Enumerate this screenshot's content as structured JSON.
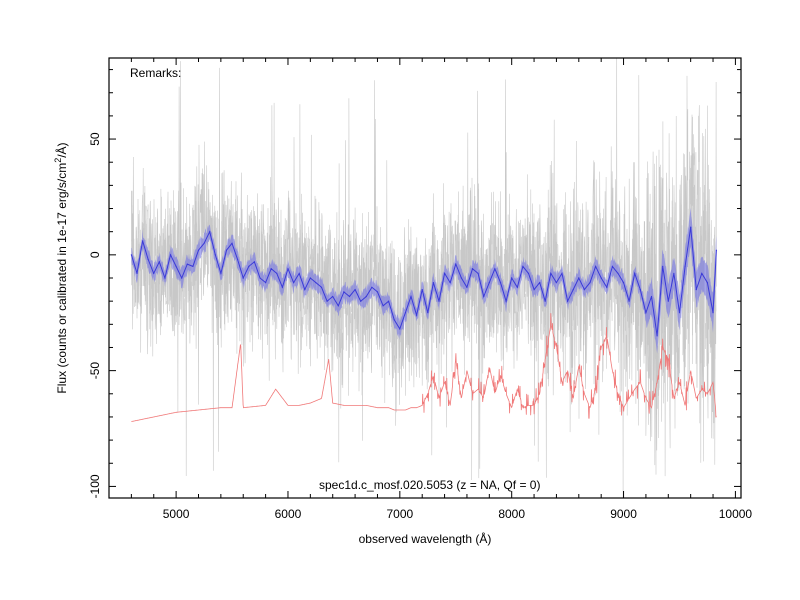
{
  "chart_data": {
    "type": "line",
    "xlabel": "observed wavelength (Å)",
    "ylabel_prefix": "Flux (counts or calibrated in 1e-17 erg/s/cm",
    "ylabel_sup": "2",
    "ylabel_suffix": "/Å)",
    "xlim": [
      4400,
      10050
    ],
    "ylim": [
      -105,
      85
    ],
    "x_ticks": [
      5000,
      6000,
      7000,
      8000,
      9000,
      10000
    ],
    "x_tick_labels": [
      "5000",
      "6000",
      "7000",
      "8000",
      "9000",
      "10000"
    ],
    "y_ticks": [
      -100,
      -50,
      0,
      50
    ],
    "y_tick_labels": [
      "-100",
      "-50",
      "0",
      "50"
    ],
    "x_minor_step": 200,
    "y_minor_step": 10,
    "remarks": "Remarks:",
    "annotation": "spec1d.c_mosf.020.5053 (z =   NA, Qf = 0)",
    "colors": {
      "raw": "#c8c8c8",
      "smoothed": "#3a3ad8",
      "band": "#6a6ae6",
      "sky": "#f07878",
      "axes": "#000000"
    },
    "series": [
      {
        "role": "smoothed flux",
        "x": [
          4600,
          4650,
          4700,
          4750,
          4800,
          4850,
          4900,
          4950,
          5000,
          5050,
          5100,
          5150,
          5200,
          5250,
          5300,
          5350,
          5400,
          5450,
          5500,
          5550,
          5600,
          5650,
          5700,
          5750,
          5800,
          5850,
          5900,
          5950,
          6000,
          6050,
          6100,
          6150,
          6200,
          6250,
          6300,
          6350,
          6400,
          6450,
          6500,
          6550,
          6600,
          6650,
          6700,
          6750,
          6800,
          6850,
          6900,
          6950,
          7000,
          7050,
          7100,
          7150,
          7200,
          7250,
          7300,
          7350,
          7400,
          7450,
          7500,
          7550,
          7600,
          7650,
          7700,
          7750,
          7800,
          7850,
          7900,
          7950,
          8000,
          8050,
          8100,
          8150,
          8200,
          8250,
          8300,
          8350,
          8400,
          8450,
          8500,
          8550,
          8600,
          8650,
          8700,
          8750,
          8800,
          8850,
          8900,
          8950,
          9000,
          9050,
          9100,
          9150,
          9200,
          9250,
          9300,
          9350,
          9400,
          9450,
          9500,
          9550,
          9600,
          9650,
          9700,
          9750,
          9800,
          9830
        ],
        "y": [
          0,
          -8,
          6,
          -2,
          -8,
          -3,
          -10,
          0,
          -5,
          -10,
          -4,
          -5,
          2,
          5,
          10,
          0,
          -8,
          2,
          5,
          -2,
          -10,
          -5,
          -3,
          -10,
          -12,
          -6,
          -8,
          -14,
          -6,
          -12,
          -8,
          -15,
          -10,
          -12,
          -14,
          -20,
          -18,
          -22,
          -16,
          -18,
          -15,
          -20,
          -18,
          -14,
          -16,
          -22,
          -20,
          -28,
          -32,
          -25,
          -18,
          -26,
          -15,
          -25,
          -12,
          -20,
          -8,
          -12,
          -4,
          -10,
          -14,
          -6,
          -8,
          -18,
          -12,
          -6,
          -12,
          -20,
          -10,
          -14,
          -5,
          -8,
          -15,
          -12,
          -20,
          -8,
          -12,
          -8,
          -20,
          -15,
          -10,
          -15,
          -12,
          -5,
          -10,
          -14,
          -5,
          -8,
          -12,
          -20,
          -8,
          -15,
          -25,
          -18,
          -35,
          -5,
          -20,
          -8,
          -25,
          -5,
          12,
          -15,
          -8,
          -12,
          -25,
          2
        ]
      },
      {
        "role": "sky spectrum",
        "x": [
          4600,
          4700,
          4800,
          4900,
          5000,
          5200,
          5400,
          5500,
          5577,
          5600,
          5800,
          5890,
          6000,
          6100,
          6200,
          6300,
          6364,
          6400,
          6500,
          6600,
          6700,
          6800,
          6850,
          6900,
          6950,
          7000,
          7050,
          7100,
          7150,
          7200,
          7250,
          7300,
          7350,
          7400,
          7450,
          7500,
          7550,
          7600,
          7650,
          7700,
          7750,
          7800,
          7850,
          7900,
          7950,
          8000,
          8050,
          8100,
          8150,
          8200,
          8250,
          8300,
          8350,
          8400,
          8450,
          8500,
          8550,
          8600,
          8650,
          8700,
          8750,
          8800,
          8850,
          8900,
          8950,
          9000,
          9050,
          9100,
          9150,
          9200,
          9250,
          9300,
          9350,
          9400,
          9450,
          9500,
          9550,
          9600,
          9650,
          9700,
          9750,
          9800,
          9830
        ],
        "y": [
          -72,
          -71,
          -70,
          -69,
          -68,
          -67,
          -66,
          -66,
          -38,
          -66,
          -65,
          -58,
          -65,
          -65,
          -64,
          -62,
          -45,
          -64,
          -65,
          -65,
          -65,
          -66,
          -66,
          -66,
          -67,
          -67,
          -67,
          -66,
          -66,
          -65,
          -60,
          -52,
          -62,
          -55,
          -65,
          -45,
          -62,
          -50,
          -60,
          -58,
          -62,
          -48,
          -60,
          -52,
          -60,
          -66,
          -58,
          -66,
          -65,
          -65,
          -60,
          -45,
          -30,
          -40,
          -55,
          -50,
          -62,
          -48,
          -60,
          -66,
          -58,
          -40,
          -35,
          -50,
          -60,
          -66,
          -62,
          -58,
          -55,
          -62,
          -66,
          -55,
          -40,
          -45,
          -62,
          -55,
          -65,
          -50,
          -62,
          -58,
          -60,
          -55,
          -70
        ]
      }
    ]
  }
}
